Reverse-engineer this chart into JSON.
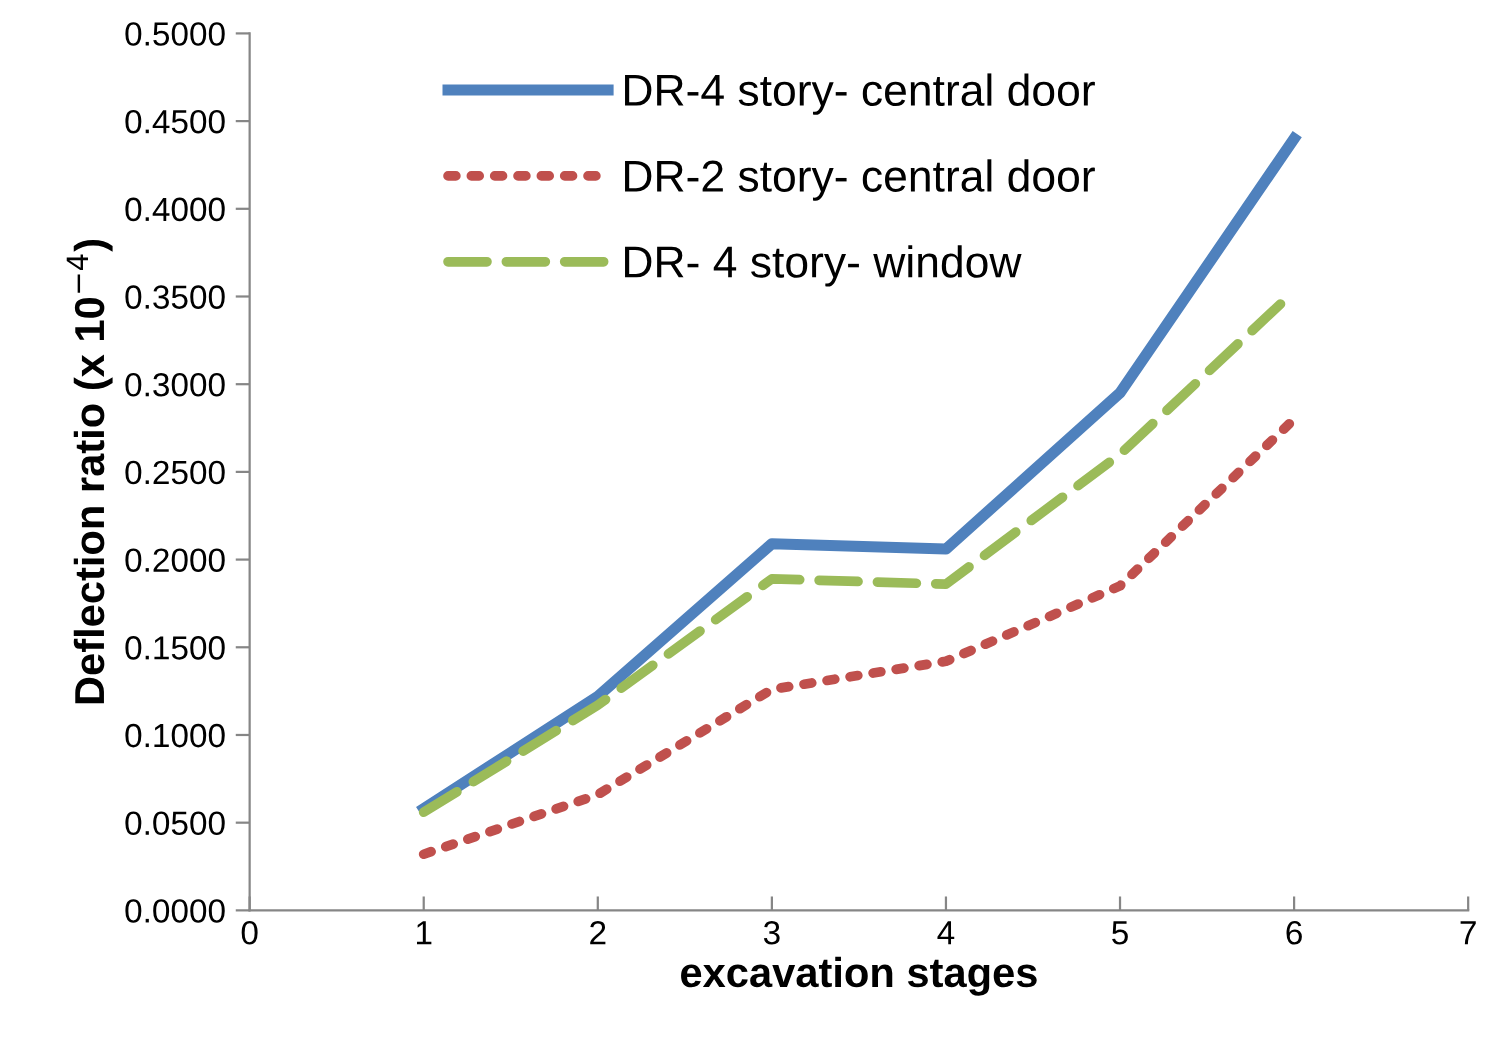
{
  "chart_data": {
    "type": "line",
    "xlabel": "excavation stages",
    "ylabel": "Deflection ratio (x 10$^{−4}$)",
    "xlim": [
      0,
      7
    ],
    "xticks": [
      0,
      1,
      2,
      3,
      4,
      5,
      6,
      7
    ],
    "ylim": [
      0,
      0.5
    ],
    "yticks": [
      {
        "value": 0,
        "label": "0.0000"
      },
      {
        "value": 0.05,
        "label": "0.0500"
      },
      {
        "value": 0.1,
        "label": "0.1000"
      },
      {
        "value": 0.15,
        "label": "0.1500"
      },
      {
        "value": 0.2,
        "label": "0.2000"
      },
      {
        "value": 0.25,
        "label": "0.2500"
      },
      {
        "value": 0.3,
        "label": "0.3000"
      },
      {
        "value": 0.35,
        "label": "0.3500"
      },
      {
        "value": 0.4,
        "label": "0.4000"
      },
      {
        "value": 0.45,
        "label": "0.4500"
      },
      {
        "value": 0.5,
        "label": "0.5000"
      }
    ],
    "x": [
      1,
      2,
      3,
      4,
      5,
      6
    ],
    "grid": false,
    "legend": "top left",
    "series": [
      {
        "name": "DR-4 story- central door",
        "color": "#4f81bd",
        "line_style": "solid",
        "values": [
          0.058,
          0.122,
          0.209,
          0.206,
          0.295,
          0.44
        ]
      },
      {
        "name": "DR-2 story- central door",
        "color": "#c0504d",
        "line_style": "dotted",
        "values": [
          0.032,
          0.066,
          0.126,
          0.142,
          0.185,
          0.28
        ]
      },
      {
        "name": "DR- 4 story- window",
        "color": "#9bbb59",
        "line_style": "dashed",
        "values": [
          0.056,
          0.117,
          0.189,
          0.186,
          0.26,
          0.353
        ]
      }
    ]
  }
}
